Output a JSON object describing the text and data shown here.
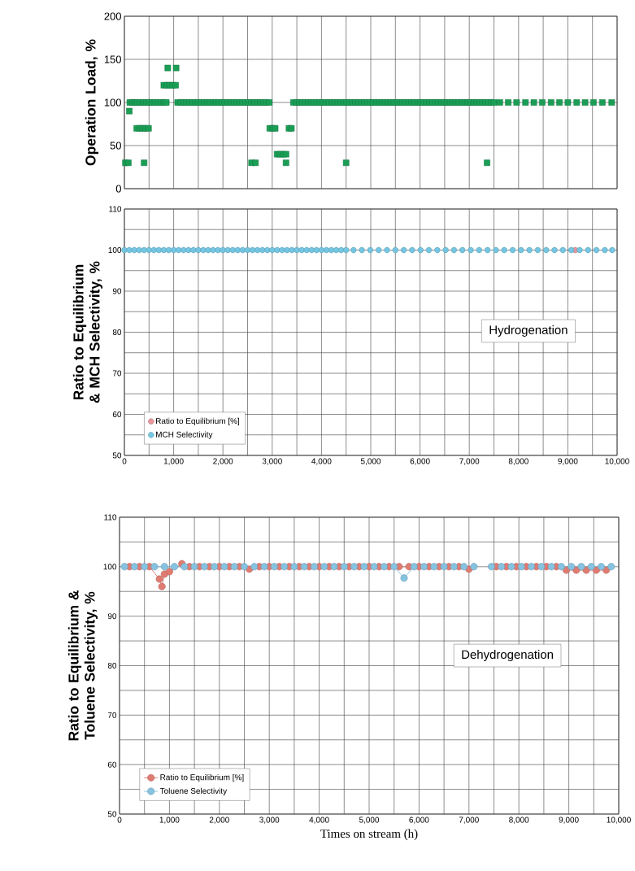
{
  "chart_data": [
    {
      "type": "scatter",
      "ylabel": "Operation Load, %",
      "color": "#1a9e55",
      "marker": "square",
      "grid": true,
      "legend": false,
      "tick_labels": "y",
      "x": [
        20,
        80,
        100,
        110,
        160,
        210,
        260,
        250,
        310,
        370,
        430,
        490,
        400,
        320,
        380,
        440,
        500,
        560,
        620,
        680,
        740,
        800,
        850,
        800,
        860,
        920,
        980,
        1040,
        880,
        1050,
        1080,
        1140,
        1200,
        1260,
        1320,
        1380,
        1440,
        1500,
        1560,
        1620,
        1680,
        1740,
        1800,
        1860,
        1920,
        1980,
        2040,
        2100,
        2160,
        2220,
        2280,
        2340,
        2400,
        2460,
        2520,
        2580,
        2640,
        2700,
        2760,
        2820,
        2880,
        2940,
        2580,
        2660,
        2950,
        3010,
        3060,
        3100,
        3160,
        3220,
        3280,
        3280,
        3340,
        3390,
        3430,
        3490,
        3550,
        3610,
        3670,
        3730,
        3790,
        3850,
        3910,
        3970,
        4030,
        4090,
        4150,
        4210,
        4270,
        4330,
        4390,
        4450,
        4510,
        4570,
        4630,
        4690,
        4750,
        4810,
        4870,
        4930,
        4990,
        5050,
        5110,
        5170,
        5230,
        5290,
        5350,
        5410,
        5470,
        5530,
        5590,
        5650,
        5710,
        5770,
        5830,
        5890,
        5950,
        6010,
        6070,
        6130,
        6190,
        6250,
        6310,
        6370,
        6430,
        6490,
        6550,
        6610,
        6670,
        6730,
        6790,
        6850,
        6910,
        6970,
        7030,
        7090,
        7150,
        7210,
        7270,
        7330,
        7390,
        7450,
        7500,
        4500,
        7360,
        7620,
        7790,
        7960,
        8140,
        8310,
        8480,
        8660,
        8830,
        9000,
        9180,
        9350,
        9520,
        9700,
        9890
      ],
      "values": [
        30,
        30,
        90,
        100,
        100,
        100,
        100,
        70,
        70,
        70,
        70,
        70,
        30,
        100,
        100,
        100,
        100,
        100,
        100,
        100,
        100,
        100,
        100,
        120,
        120,
        120,
        120,
        120,
        140,
        140,
        100,
        100,
        100,
        100,
        100,
        100,
        100,
        100,
        100,
        100,
        100,
        100,
        100,
        100,
        100,
        100,
        100,
        100,
        100,
        100,
        100,
        100,
        100,
        100,
        100,
        100,
        100,
        100,
        100,
        100,
        100,
        100,
        30,
        30,
        70,
        70,
        70,
        40,
        40,
        40,
        40,
        30,
        70,
        70,
        100,
        100,
        100,
        100,
        100,
        100,
        100,
        100,
        100,
        100,
        100,
        100,
        100,
        100,
        100,
        100,
        100,
        100,
        100,
        100,
        100,
        100,
        100,
        100,
        100,
        100,
        100,
        100,
        100,
        100,
        100,
        100,
        100,
        100,
        100,
        100,
        100,
        100,
        100,
        100,
        100,
        100,
        100,
        100,
        100,
        100,
        100,
        100,
        100,
        100,
        100,
        100,
        100,
        100,
        100,
        100,
        100,
        100,
        100,
        100,
        100,
        100,
        100,
        100,
        100,
        100,
        100,
        100,
        100,
        30,
        30,
        100,
        100,
        100,
        100,
        100,
        100,
        100,
        100,
        100,
        100,
        100,
        100,
        100,
        100
      ],
      "xlim": [
        0,
        10000
      ],
      "ylim": [
        0,
        200
      ],
      "xticks": [
        0,
        500,
        1000,
        1500,
        2000,
        2500,
        3000,
        3500,
        4000,
        4500,
        5000,
        5500,
        6000,
        6500,
        7000,
        7500,
        8000,
        8500,
        9000,
        9500,
        10000
      ],
      "yticks": [
        0,
        50,
        100,
        150,
        200
      ]
    },
    {
      "type": "scatter",
      "ylabel": "Ratio to Equilibrium & MCH Selectivity, %",
      "annotations": [
        "Hydrogenation"
      ],
      "marker": "circle",
      "grid": true,
      "legend": "bottom left",
      "series": [
        {
          "name": "Ratio to Equilibrium [%]",
          "color": "#e8969c",
          "x": [
            9150
          ],
          "values": [
            100
          ]
        },
        {
          "name": "MCH Selectivity",
          "color": "#74c6e2",
          "x": [
            0,
            100,
            200,
            300,
            400,
            500,
            600,
            700,
            800,
            900,
            1000,
            1100,
            1200,
            1300,
            1400,
            1500,
            1600,
            1700,
            1800,
            1900,
            2000,
            2100,
            2200,
            2300,
            2400,
            2500,
            2600,
            2700,
            2800,
            2900,
            3000,
            3100,
            3200,
            3300,
            3400,
            3500,
            3600,
            3700,
            3800,
            3900,
            4000,
            4100,
            4200,
            4300,
            4400,
            4500,
            4650,
            4820,
            4990,
            5160,
            5330,
            5500,
            5670,
            5840,
            6010,
            6180,
            6350,
            6520,
            6690,
            6860,
            7030,
            7200,
            7370,
            7540,
            7710,
            7880,
            8050,
            8220,
            8390,
            8560,
            8730,
            8900,
            9070,
            9240,
            9410,
            9580,
            9750,
            9900
          ],
          "values": [
            100,
            100,
            100,
            100,
            100,
            100,
            100,
            100,
            100,
            100,
            100,
            100,
            100,
            100,
            100,
            100,
            100,
            100,
            100,
            100,
            100,
            100,
            100,
            100,
            100,
            100,
            100,
            100,
            100,
            100,
            100,
            100,
            100,
            100,
            100,
            100,
            100,
            100,
            100,
            100,
            100,
            100,
            100,
            100,
            100,
            100,
            100,
            100,
            100,
            100,
            100,
            100,
            100,
            100,
            100,
            100,
            100,
            100,
            100,
            100,
            100,
            100,
            100,
            100,
            100,
            100,
            100,
            100,
            100,
            100,
            100,
            100,
            100,
            100,
            100,
            100,
            100,
            100
          ]
        }
      ],
      "xlim": [
        0,
        10000
      ],
      "ylim": [
        50,
        110
      ],
      "xticks": [
        0,
        {
          "value": 500,
          "label": null
        },
        {
          "value": 1000,
          "label": "1,000"
        },
        {
          "value": 1500,
          "label": null
        },
        {
          "value": 2000,
          "label": "2,000"
        },
        {
          "value": 2500,
          "label": null
        },
        {
          "value": 3000,
          "label": "3,000"
        },
        {
          "value": 3500,
          "label": null
        },
        {
          "value": 4000,
          "label": "4,000"
        },
        {
          "value": 4500,
          "label": null
        },
        {
          "value": 5000,
          "label": "5,000"
        },
        {
          "value": 5500,
          "label": null
        },
        {
          "value": 6000,
          "label": "6,000"
        },
        {
          "value": 6500,
          "label": null
        },
        {
          "value": 7000,
          "label": "7,000"
        },
        {
          "value": 7500,
          "label": null
        },
        {
          "value": 8000,
          "label": "8,000"
        },
        {
          "value": 8500,
          "label": null
        },
        {
          "value": 9000,
          "label": "9,000"
        },
        {
          "value": 9500,
          "label": null
        },
        {
          "value": 10000,
          "label": "10,000"
        }
      ],
      "yticks": [
        50,
        {
          "value": 55,
          "label": null
        },
        60,
        {
          "value": 65,
          "label": null
        },
        70,
        {
          "value": 75,
          "label": null
        },
        80,
        {
          "value": 85,
          "label": null
        },
        90,
        {
          "value": 95,
          "label": null
        },
        100,
        {
          "value": 105,
          "label": null
        },
        110
      ]
    },
    {
      "type": "line",
      "ylabel": "Ratio to Equilibrium & Toluene Selectivity, %",
      "xlabel": "Times on stream  (h)",
      "annotations": [
        "Dehydrogenation"
      ],
      "marker": "circle",
      "grid": true,
      "legend": "bottom left",
      "series": [
        {
          "name": "Ratio to Equilibrium [%]",
          "color": "#e07b72",
          "x": [
            200,
            400,
            600,
            800,
            850,
            900,
            1000,
            1250,
            1400,
            1600,
            1800,
            2000,
            2200,
            2400,
            2600,
            2800,
            3000,
            3200,
            3400,
            3600,
            3800,
            4000,
            4200,
            4400,
            4600,
            4800,
            5000,
            5200,
            5400,
            5600,
            5800,
            6000,
            6200,
            6400,
            6600,
            6800,
            7000,
            7300,
            7550,
            7750,
            7950,
            8150,
            8350,
            8550,
            8750,
            8950,
            9150,
            9350,
            9550,
            9750
          ],
          "values": [
            100,
            100,
            100,
            97.5,
            96,
            98.5,
            99,
            100.6,
            100,
            100,
            100,
            100,
            100,
            100,
            99.5,
            100,
            100,
            100,
            100,
            100,
            100,
            100,
            100,
            100,
            100,
            100,
            100,
            100,
            100,
            100,
            100,
            100,
            100,
            100,
            100,
            100,
            99.5,
            null,
            100,
            100,
            100,
            100,
            100,
            100,
            100,
            99.3,
            99.3,
            99.3,
            99.3,
            99.3
          ]
        },
        {
          "name": "Toluene Selectivity",
          "color": "#86c3e0",
          "x": [
            100,
            300,
            500,
            700,
            900,
            1100,
            1300,
            1500,
            1700,
            1900,
            2100,
            2300,
            2500,
            2700,
            2900,
            3100,
            3300,
            3500,
            3700,
            3900,
            4100,
            4300,
            4500,
            4700,
            4900,
            5100,
            5300,
            5500,
            5700,
            5900,
            6100,
            6300,
            6500,
            6700,
            6900,
            7100,
            7250,
            7450,
            7650,
            7850,
            8050,
            8250,
            8450,
            8650,
            8850,
            9050,
            9250,
            9450,
            9650,
            9850
          ],
          "values": [
            100,
            100,
            100,
            100,
            100,
            100,
            100,
            100,
            100,
            100,
            100,
            100,
            100,
            100,
            100,
            100,
            100,
            100,
            100,
            100,
            100,
            100,
            100,
            100,
            100,
            100,
            100,
            100,
            97.7,
            100,
            100,
            100,
            100,
            100,
            100,
            100,
            null,
            100,
            100,
            100,
            100,
            100,
            100,
            100,
            100,
            100,
            100,
            100,
            100,
            100
          ]
        }
      ],
      "xlim": [
        0,
        10000
      ],
      "ylim": [
        50,
        110
      ],
      "xticks": [
        0,
        {
          "value": 500,
          "label": null
        },
        {
          "value": 1000,
          "label": "1,000"
        },
        {
          "value": 1500,
          "label": null
        },
        {
          "value": 2000,
          "label": "2,000"
        },
        {
          "value": 2500,
          "label": null
        },
        {
          "value": 3000,
          "label": "3,000"
        },
        {
          "value": 3500,
          "label": null
        },
        {
          "value": 4000,
          "label": "4,000"
        },
        {
          "value": 4500,
          "label": null
        },
        {
          "value": 5000,
          "label": "5,000"
        },
        {
          "value": 5500,
          "label": null
        },
        {
          "value": 6000,
          "label": "6,000"
        },
        {
          "value": 6500,
          "label": null
        },
        {
          "value": 7000,
          "label": "7,000"
        },
        {
          "value": 7500,
          "label": null
        },
        {
          "value": 8000,
          "label": "8,000"
        },
        {
          "value": 8500,
          "label": null
        },
        {
          "value": 9000,
          "label": "9,000"
        },
        {
          "value": 9500,
          "label": null
        },
        {
          "value": 10000,
          "label": "10,000"
        }
      ],
      "yticks": [
        50,
        {
          "value": 55,
          "label": null
        },
        60,
        {
          "value": 65,
          "label": null
        },
        70,
        {
          "value": 75,
          "label": null
        },
        80,
        {
          "value": 85,
          "label": null
        },
        90,
        {
          "value": 95,
          "label": null
        },
        100,
        {
          "value": 105,
          "label": null
        },
        110
      ]
    }
  ]
}
